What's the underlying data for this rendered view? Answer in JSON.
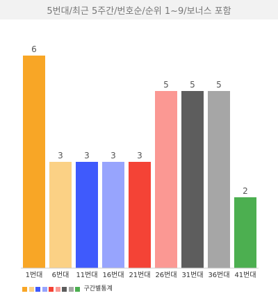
{
  "chart_data": {
    "type": "bar",
    "title": "5번대/최근 5주간/번호순/순위 1~9/보너스 포함",
    "categories": [
      "1번대",
      "6번대",
      "11번대",
      "16번대",
      "21번대",
      "26번대",
      "31번대",
      "36번대",
      "41번대"
    ],
    "values": [
      6,
      3,
      3,
      3,
      3,
      5,
      5,
      5,
      2
    ],
    "colors": [
      "#f8a626",
      "#fbd185",
      "#3f5afc",
      "#97a4fd",
      "#f44336",
      "#fb9893",
      "#5d5d5d",
      "#a6a6a6",
      "#4caf50"
    ],
    "ylim": [
      0,
      6.5
    ],
    "grid": false,
    "legend": {
      "position": "bottom-left",
      "label": "구간별통계",
      "swatches": [
        "#f8a626",
        "#fbd185",
        "#3f5afc",
        "#97a4fd",
        "#f44336",
        "#fb9893",
        "#5d5d5d",
        "#a6a6a6",
        "#4caf50"
      ]
    }
  }
}
